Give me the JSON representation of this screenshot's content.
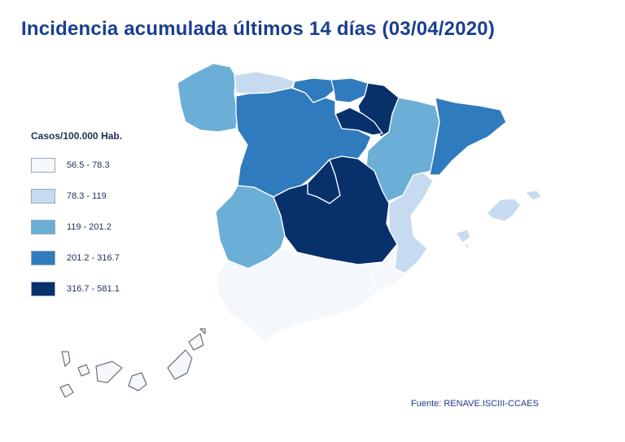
{
  "title": "Incidencia acumulada últimos 14 días (03/04/2020)",
  "legend": {
    "title": "Casos/100.000 Hab.",
    "items": [
      {
        "label": "56.5 - 78.3",
        "color": "#f4f8fd"
      },
      {
        "label": "78.3 - 119",
        "color": "#c6dbef"
      },
      {
        "label": "119 - 201.2",
        "color": "#6baed6"
      },
      {
        "label": "201.2 - 316.7",
        "color": "#2f7bbe"
      },
      {
        "label": "316.7 - 581.1",
        "color": "#08306b"
      }
    ]
  },
  "source": "Fuente: RENAVE.ISCIII-CCAES",
  "region_class": {
    "galicia": 2,
    "asturias": 1,
    "cantabria": 3,
    "pais-vasco": 3,
    "navarra": 4,
    "la-rioja": 4,
    "aragon": 2,
    "cataluna": 3,
    "castilla-y-leon": 3,
    "madrid": 4,
    "castilla-la-mancha": 4,
    "extremadura": 2,
    "comunidad-valenciana": 1,
    "andalucia": 0,
    "murcia": 0,
    "baleares": 1,
    "canarias": 0
  }
}
